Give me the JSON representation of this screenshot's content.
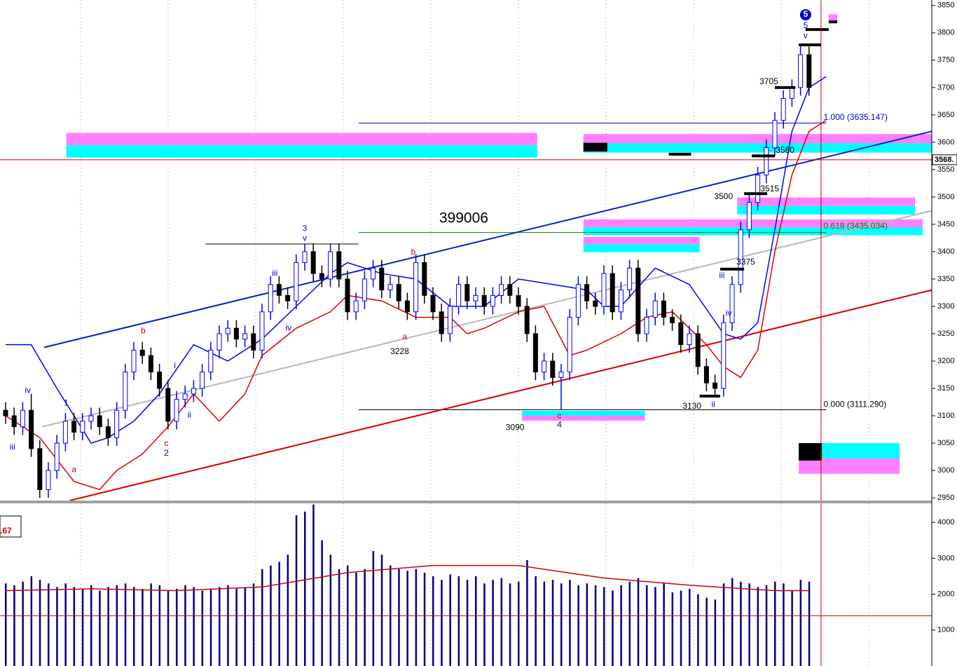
{
  "chart_data": [
    {
      "type": "candlestick",
      "open": [
        3110,
        3100,
        3080,
        3110,
        3040,
        2965,
        3000,
        3050,
        3090,
        3070,
        3090,
        3100,
        3080,
        3060,
        3110,
        3180,
        3220,
        3210,
        3180,
        3150,
        3090,
        3130,
        3140,
        3150,
        3180,
        3220,
        3250,
        3260,
        3240,
        3250,
        3220,
        3290,
        3340,
        3320,
        3310,
        3380,
        3400,
        3360,
        3350,
        3400,
        3350,
        3290,
        3310,
        3350,
        3370,
        3330,
        3340,
        3310,
        3290,
        3380,
        3320,
        3290,
        3250,
        3300,
        3340,
        3310,
        3320,
        3300,
        3320,
        3340,
        3320,
        3300,
        3250,
        3180,
        3200,
        3170,
        3180,
        3280,
        3340,
        3310,
        3300,
        3360,
        3290,
        3330,
        3370,
        3250,
        3280,
        3310,
        3280,
        3270,
        3230,
        3250,
        3190,
        3160,
        3150,
        3270,
        3340,
        3440,
        3490,
        3540,
        3590,
        3640,
        3680,
        3700,
        3760
      ],
      "high": [
        3125,
        3115,
        3125,
        3140,
        3055,
        3015,
        3065,
        3105,
        3105,
        3105,
        3115,
        3115,
        3095,
        3125,
        3195,
        3235,
        3235,
        3225,
        3195,
        3165,
        3145,
        3155,
        3165,
        3195,
        3235,
        3265,
        3275,
        3275,
        3265,
        3265,
        3305,
        3355,
        3355,
        3335,
        3395,
        3415,
        3415,
        3375,
        3415,
        3415,
        3365,
        3325,
        3365,
        3385,
        3385,
        3355,
        3355,
        3325,
        3395,
        3395,
        3335,
        3305,
        3315,
        3355,
        3355,
        3335,
        3335,
        3335,
        3355,
        3355,
        3335,
        3315,
        3265,
        3215,
        3215,
        3195,
        3295,
        3355,
        3355,
        3325,
        3375,
        3375,
        3345,
        3385,
        3385,
        3295,
        3325,
        3325,
        3295,
        3285,
        3265,
        3265,
        3205,
        3175,
        3285,
        3355,
        3455,
        3505,
        3555,
        3605,
        3655,
        3695,
        3715,
        3780,
        3775
      ],
      "low": [
        3085,
        3065,
        3065,
        3025,
        2950,
        2950,
        2985,
        3035,
        3055,
        3055,
        3075,
        3065,
        3045,
        3045,
        3095,
        3165,
        3195,
        3165,
        3135,
        3075,
        3075,
        3115,
        3125,
        3135,
        3165,
        3205,
        3235,
        3225,
        3225,
        3205,
        3205,
        3275,
        3305,
        3295,
        3295,
        3365,
        3345,
        3335,
        3335,
        3335,
        3275,
        3275,
        3295,
        3335,
        3315,
        3315,
        3295,
        3275,
        3275,
        3305,
        3275,
        3235,
        3235,
        3285,
        3295,
        3295,
        3285,
        3285,
        3305,
        3305,
        3285,
        3235,
        3165,
        3165,
        3155,
        3111,
        3165,
        3265,
        3295,
        3285,
        3285,
        3275,
        3275,
        3315,
        3235,
        3235,
        3265,
        3265,
        3255,
        3215,
        3215,
        3175,
        3145,
        3135,
        3135,
        3255,
        3325,
        3425,
        3475,
        3525,
        3575,
        3625,
        3665,
        3685,
        3685
      ],
      "close": [
        3100,
        3080,
        3110,
        3040,
        2965,
        3000,
        3050,
        3090,
        3070,
        3090,
        3100,
        3080,
        3060,
        3110,
        3180,
        3220,
        3210,
        3180,
        3150,
        3090,
        3130,
        3140,
        3150,
        3180,
        3220,
        3250,
        3260,
        3240,
        3250,
        3220,
        3290,
        3340,
        3320,
        3310,
        3380,
        3400,
        3360,
        3350,
        3400,
        3350,
        3290,
        3310,
        3350,
        3370,
        3330,
        3340,
        3310,
        3290,
        3380,
        3320,
        3290,
        3250,
        3300,
        3340,
        3310,
        3320,
        3300,
        3320,
        3340,
        3320,
        3300,
        3250,
        3180,
        3200,
        3170,
        3180,
        3280,
        3340,
        3310,
        3300,
        3360,
        3290,
        3330,
        3370,
        3250,
        3280,
        3310,
        3280,
        3270,
        3230,
        3250,
        3190,
        3160,
        3150,
        3270,
        3340,
        3440,
        3490,
        3540,
        3590,
        3640,
        3680,
        3700,
        3760,
        3700
      ],
      "up_color": "#0000ff",
      "down_color": "#000000",
      "ylim": [
        2945,
        3860
      ],
      "yticks": [
        3850,
        3800,
        3750,
        3700,
        3650,
        3600,
        3550,
        3500,
        3450,
        3400,
        3350,
        3300,
        3250,
        3200,
        3150,
        3100,
        3050,
        3000,
        2950
      ],
      "last_price": {
        "value": 3568,
        "label": "3568.",
        "color": "#cc0000"
      },
      "cursor_x": 95.4,
      "cursor_color": "#cc0000",
      "series": [
        {
          "color": "#0000ff",
          "x": [
            0,
            3,
            6,
            10,
            12,
            15,
            18,
            22,
            26,
            30,
            34,
            38,
            40,
            44,
            48,
            52,
            56,
            60,
            64,
            68,
            70,
            72,
            76,
            80,
            84,
            86,
            88,
            90,
            92,
            94,
            96
          ],
          "values": [
            3230,
            3230,
            3150,
            3050,
            3060,
            3090,
            3140,
            3230,
            3200,
            3240,
            3300,
            3360,
            3380,
            3360,
            3350,
            3300,
            3300,
            3350,
            3340,
            3330,
            3300,
            3300,
            3370,
            3340,
            3250,
            3240,
            3270,
            3440,
            3620,
            3700,
            3720
          ]
        },
        {
          "color": "#dd0000",
          "x": [
            0,
            4,
            8,
            11,
            13,
            16,
            19,
            22,
            25,
            28,
            30,
            34,
            38,
            40,
            44,
            48,
            52,
            54,
            56,
            60,
            63,
            66,
            68,
            72,
            75,
            78,
            80,
            82,
            84,
            86,
            88,
            90,
            92,
            94,
            96
          ],
          "values": [
            3100,
            3060,
            2980,
            2965,
            3000,
            3030,
            3080,
            3140,
            3090,
            3140,
            3210,
            3260,
            3290,
            3320,
            3310,
            3280,
            3280,
            3250,
            3260,
            3290,
            3300,
            3210,
            3220,
            3250,
            3280,
            3290,
            3260,
            3230,
            3190,
            3170,
            3220,
            3400,
            3540,
            3620,
            3640
          ]
        }
      ],
      "trendlines": [
        {
          "x": [
            4.5,
            108.4
          ],
          "y": [
            3225,
            3620
          ],
          "color": "#0022cc"
        },
        {
          "x": [
            7.5,
            108.4
          ],
          "y": [
            2945,
            3330
          ],
          "color": "#dd0000"
        },
        {
          "x": [
            4.3,
            108.4
          ],
          "y": [
            3080,
            3475
          ],
          "color": "#b8b8b8"
        }
      ],
      "levels": [
        {
          "x": [
            23.4,
            41.3
          ],
          "y": 3414,
          "color": "#000000"
        },
        {
          "x": [
            41.3,
            96
          ],
          "y": 3635,
          "color": "#0000cc"
        },
        {
          "x": [
            41.3,
            96
          ],
          "y": 3435,
          "color": "#008000"
        },
        {
          "x": [
            41.3,
            96
          ],
          "y": 3111,
          "color": "#000000"
        }
      ],
      "zones": [
        {
          "x": [
            7.1,
            62.2
          ],
          "y": [
            3572,
            3617
          ],
          "colors": [
            "#ff80ff",
            "#00ffff"
          ]
        },
        {
          "x": [
            67.6,
            108.4
          ],
          "y": [
            3581,
            3615
          ],
          "colors": [
            "#ff80ff",
            "#00ffff"
          ]
        },
        {
          "x": [
            67.6,
            81.2
          ],
          "y": [
            3399,
            3427
          ],
          "colors": [
            "#ff80ff",
            "#00ffff"
          ]
        },
        {
          "x": [
            67.6,
            107.3
          ],
          "y": [
            3430,
            3459
          ],
          "colors": [
            "#ff80ff",
            "#00ffff"
          ]
        },
        {
          "x": [
            85.6,
            106.4
          ],
          "y": [
            3468,
            3499
          ],
          "colors": [
            "#ff80ff",
            "#00ffff"
          ]
        },
        {
          "x": [
            60.4,
            74.8
          ],
          "y": [
            3091,
            3109
          ],
          "colors": [
            "#00ffff",
            "#ff80ff"
          ]
        },
        {
          "x": [
            92.8,
            104.6
          ],
          "y": [
            2994,
            3050
          ],
          "colors": [
            "#00ffff",
            "#ff80ff"
          ]
        },
        {
          "x": [
            96.3,
            97.3
          ],
          "y": [
            3822,
            3834
          ],
          "colors": [
            "#ff80ff",
            "#ff80ff"
          ]
        }
      ],
      "blocks": [
        {
          "x": [
            67.6,
            70.4
          ],
          "y": [
            3583,
            3599
          ]
        },
        {
          "x": [
            92.8,
            95.5
          ],
          "y": [
            3018,
            3050
          ]
        }
      ],
      "markers": [
        {
          "x": [
            92.8,
            95.4
          ],
          "y": 3778
        },
        {
          "x": [
            93.6,
            96.3
          ],
          "y": 3806
        },
        {
          "x": [
            90,
            92.4
          ],
          "y": 3700
        },
        {
          "x": [
            87.3,
            90
          ],
          "y": 3575
        },
        {
          "x": [
            86.4,
            89.1
          ],
          "y": 3506
        },
        {
          "x": [
            83.6,
            86.4
          ],
          "y": 3368
        },
        {
          "x": [
            81.2,
            83.6
          ],
          "y": 3136
        },
        {
          "x": [
            77.6,
            80.2
          ],
          "y": 3578
        },
        {
          "x": [
            96.3,
            97.3
          ],
          "y": 3820
        }
      ],
      "annotations": [
        {
          "text": "iii",
          "color": "#0000cc",
          "x": 0.8,
          "y": 3042
        },
        {
          "text": "iv",
          "color": "#0000cc",
          "x": 2.6,
          "y": 3146
        },
        {
          "text": "1",
          "color": "#0000cc",
          "x": 7.1,
          "y": 3123
        },
        {
          "text": "a",
          "color": "#cc0000",
          "x": 8,
          "y": 3001
        },
        {
          "text": "b",
          "color": "#cc0000",
          "x": 16.1,
          "y": 3255
        },
        {
          "text": "i",
          "color": "#0000cc",
          "x": 19.8,
          "y": 3191
        },
        {
          "text": "c",
          "color": "#cc0000",
          "x": 18.8,
          "y": 3049
        },
        {
          "text": "2",
          "color": "#0000cc",
          "x": 18.8,
          "y": 3031
        },
        {
          "text": "ii",
          "color": "#0000cc",
          "x": 21.5,
          "y": 3101
        },
        {
          "text": "iii",
          "color": "#0000cc",
          "x": 31.5,
          "y": 3360
        },
        {
          "text": "iv",
          "color": "#0000cc",
          "x": 33.1,
          "y": 3260
        },
        {
          "text": "3",
          "color": "#0000cc",
          "x": 35,
          "y": 3442
        },
        {
          "text": "v",
          "color": "#0000cc",
          "x": 35,
          "y": 3424
        },
        {
          "text": "a",
          "color": "#cc0000",
          "x": 46.7,
          "y": 3244
        },
        {
          "text": "3228",
          "color": "#000000",
          "x": 46.1,
          "y": 3217
        },
        {
          "text": "b",
          "color": "#cc0000",
          "x": 47.7,
          "y": 3399
        },
        {
          "text": "399006",
          "color": "#000000",
          "x": 53.6,
          "y": 3460
        },
        {
          "text": "3090",
          "color": "#000000",
          "x": 59.6,
          "y": 3078
        },
        {
          "text": "c",
          "color": "#cc0000",
          "x": 64.8,
          "y": 3099
        },
        {
          "text": "4",
          "color": "#0000cc",
          "x": 64.8,
          "y": 3083
        },
        {
          "text": "3130",
          "color": "#000000",
          "x": 80.3,
          "y": 3117
        },
        {
          "text": "ii",
          "color": "#0000cc",
          "x": 82.8,
          "y": 3120
        },
        {
          "text": "iii",
          "color": "#0000cc",
          "x": 83.8,
          "y": 3356
        },
        {
          "text": "iv",
          "color": "#0000cc",
          "x": 84.6,
          "y": 3287
        },
        {
          "text": "3375",
          "color": "#000000",
          "x": 86.6,
          "y": 3380
        },
        {
          "text": "3500",
          "color": "#000000",
          "x": 84,
          "y": 3500
        },
        {
          "text": "3515",
          "color": "#000000",
          "x": 89.4,
          "y": 3514
        },
        {
          "text": "3580",
          "color": "#000000",
          "x": 91.2,
          "y": 3585
        },
        {
          "text": "3705",
          "color": "#000000",
          "x": 89.3,
          "y": 3710
        },
        {
          "text": "5",
          "color": "#0000cc",
          "x": 93.6,
          "y": 3813
        },
        {
          "text": "v",
          "color": "#0000cc",
          "x": 93.6,
          "y": 3794
        },
        {
          "text": "5",
          "color": "#ffffff",
          "x": 93.6,
          "y": 3833,
          "circle": "#0000cc"
        },
        {
          "text": "1.000 (3635.147)",
          "color": "#0000cc",
          "x": 95.7,
          "y": 3645
        },
        {
          "text": "0.618 (3435.034)",
          "color": "#008000",
          "x": 95.7,
          "y": 3446
        },
        {
          "text": "0.000 (3111.290)",
          "color": "#000000",
          "x": 95.7,
          "y": 3120
        }
      ]
    },
    {
      "type": "bar",
      "values": [
        2300,
        2250,
        2350,
        2500,
        2400,
        2300,
        2200,
        2300,
        2200,
        2150,
        2250,
        2100,
        2200,
        2250,
        2300,
        2200,
        2150,
        2300,
        2250,
        2100,
        2150,
        2250,
        2200,
        2100,
        2150,
        2200,
        2250,
        2150,
        2200,
        2300,
        2700,
        2800,
        2900,
        3100,
        4200,
        4300,
        4500,
        3500,
        3100,
        2700,
        2800,
        2600,
        2700,
        3200,
        3100,
        2800,
        2700,
        2650,
        2700,
        2600,
        2500,
        2400,
        2550,
        2500,
        2400,
        2500,
        2300,
        2400,
        2450,
        2300,
        2350,
        2950,
        2500,
        2350,
        2400,
        2300,
        2400,
        2250,
        2300,
        2250,
        2200,
        2100,
        2250,
        2350,
        2450,
        2250,
        2200,
        2300,
        2050,
        2100,
        2150,
        2000,
        1900,
        1850,
        2300,
        2450,
        2350,
        2300,
        2200,
        2250,
        2350,
        2300,
        2100,
        2400,
        2350
      ],
      "color": "#000080",
      "ylim": [
        0,
        4530
      ],
      "yticks": [
        1000,
        2000,
        3000,
        4000
      ],
      "series": [
        {
          "color": "#cc0000",
          "x": [
            0,
            10,
            20,
            30,
            35,
            40,
            50,
            60,
            70,
            80,
            90,
            94
          ],
          "values": [
            2100,
            2150,
            2100,
            2200,
            2400,
            2600,
            2800,
            2800,
            2450,
            2250,
            2100,
            2100
          ]
        }
      ],
      "levels": [
        {
          "y": 1400,
          "color": "#cc0000"
        }
      ],
      "legend_text": ".67"
    }
  ]
}
